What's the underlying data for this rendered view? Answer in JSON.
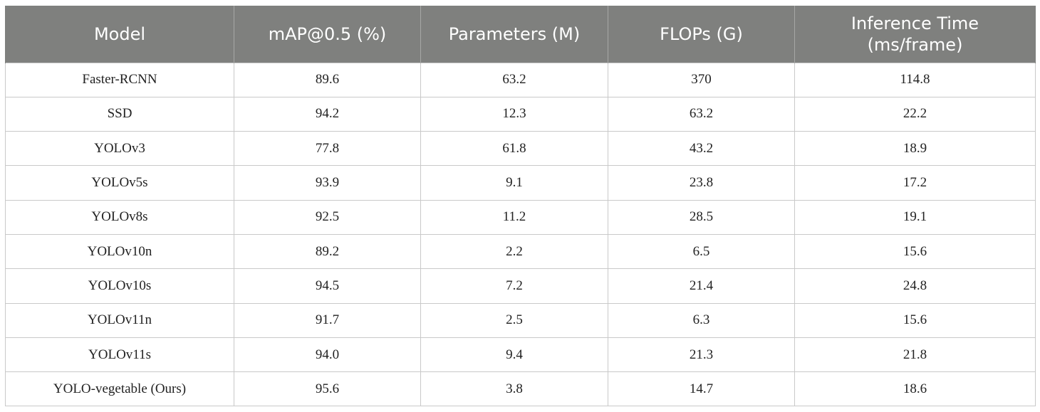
{
  "table": {
    "headers": [
      [
        "Model"
      ],
      [
        "mAP@0.5 (%)"
      ],
      [
        "Parameters (M)"
      ],
      [
        "FLOPs (G)"
      ],
      [
        "Inference Time",
        "(ms/frame)"
      ]
    ],
    "rows": [
      [
        "Faster-RCNN",
        "89.6",
        "63.2",
        "370",
        "114.8"
      ],
      [
        "SSD",
        "94.2",
        "12.3",
        "63.2",
        "22.2"
      ],
      [
        "YOLOv3",
        "77.8",
        "61.8",
        "43.2",
        "18.9"
      ],
      [
        "YOLOv5s",
        "93.9",
        "9.1",
        "23.8",
        "17.2"
      ],
      [
        "YOLOv8s",
        "92.5",
        "11.2",
        "28.5",
        "19.1"
      ],
      [
        "YOLOv10n",
        "89.2",
        "2.2",
        "6.5",
        "15.6"
      ],
      [
        "YOLOv10s",
        "94.5",
        "7.2",
        "21.4",
        "24.8"
      ],
      [
        "YOLOv11n",
        "91.7",
        "2.5",
        "6.3",
        "15.6"
      ],
      [
        "YOLOv11s",
        "94.0",
        "9.4",
        "21.3",
        "21.8"
      ],
      [
        "YOLO-vegetable (Ours)",
        "95.6",
        "3.8",
        "14.7",
        "18.6"
      ]
    ]
  }
}
